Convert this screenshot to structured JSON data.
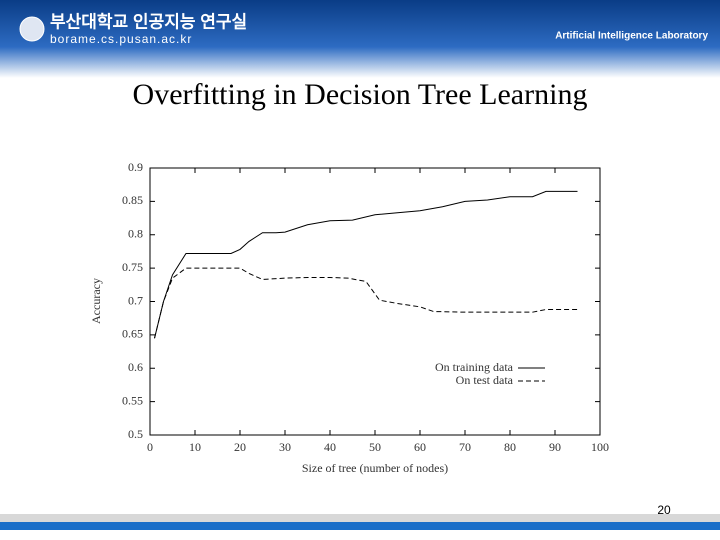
{
  "header": {
    "lab_korean": "부산대학교 인공지능 연구실",
    "url": "borame.cs.pusan.ac.kr",
    "lab_english": "Artificial Intelligence Laboratory"
  },
  "slide": {
    "title": "Overfitting in Decision Tree Learning",
    "page_number": "20"
  },
  "chart_data": {
    "type": "line",
    "xlabel": "Size of tree (number of nodes)",
    "ylabel": "Accuracy",
    "xlim": [
      0,
      100
    ],
    "ylim": [
      0.5,
      0.9
    ],
    "xticks": [
      0,
      10,
      20,
      30,
      40,
      50,
      60,
      70,
      80,
      90,
      100
    ],
    "yticks": [
      0.5,
      0.55,
      0.6,
      0.65,
      0.7,
      0.75,
      0.8,
      0.85,
      0.9
    ],
    "legend": "lower-right",
    "series": [
      {
        "name": "On training data",
        "color": "#000000",
        "dashed": false,
        "x": [
          1,
          3,
          5,
          8,
          12,
          18,
          20,
          22,
          25,
          28,
          30,
          35,
          40,
          45,
          50,
          55,
          60,
          65,
          70,
          75,
          80,
          85,
          88,
          95
        ],
        "values": [
          0.645,
          0.7,
          0.74,
          0.772,
          0.772,
          0.772,
          0.778,
          0.79,
          0.803,
          0.803,
          0.804,
          0.815,
          0.821,
          0.822,
          0.83,
          0.833,
          0.836,
          0.842,
          0.85,
          0.852,
          0.857,
          0.857,
          0.865,
          0.865
        ]
      },
      {
        "name": "On test data",
        "color": "#000000",
        "dashed": true,
        "x": [
          1,
          3,
          5,
          8,
          12,
          18,
          20,
          22,
          25,
          30,
          35,
          40,
          44,
          48,
          51,
          55,
          60,
          63,
          70,
          80,
          85,
          88,
          95
        ],
        "values": [
          0.645,
          0.7,
          0.735,
          0.75,
          0.75,
          0.75,
          0.75,
          0.742,
          0.733,
          0.735,
          0.736,
          0.736,
          0.735,
          0.73,
          0.702,
          0.697,
          0.692,
          0.685,
          0.684,
          0.684,
          0.684,
          0.688,
          0.688
        ]
      }
    ]
  }
}
